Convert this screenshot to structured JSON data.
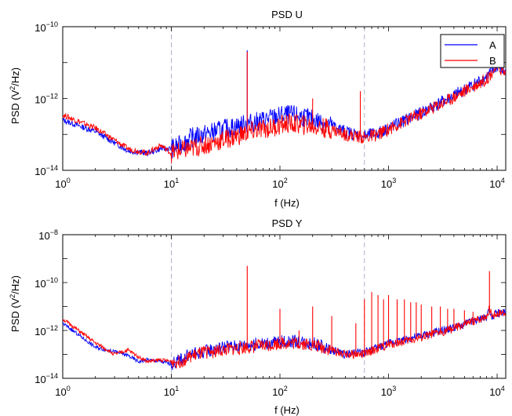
{
  "chart_data": [
    {
      "type": "line",
      "title": "PSD U",
      "xlabel": "f (Hz)",
      "ylabel_parts": {
        "pre": "PSD (V",
        "sup": "2",
        "post": "/Hz)"
      },
      "xscale": "log",
      "yscale": "log",
      "xlim": [
        1,
        12000
      ],
      "ylim": [
        1e-14,
        1e-10
      ],
      "x_ticks": [
        {
          "base": "10",
          "exp": "0",
          "value": 1
        },
        {
          "base": "10",
          "exp": "1",
          "value": 10
        },
        {
          "base": "10",
          "exp": "2",
          "value": 100
        },
        {
          "base": "10",
          "exp": "3",
          "value": 1000
        },
        {
          "base": "10",
          "exp": "4",
          "value": 10000
        }
      ],
      "y_ticks": [
        {
          "base": "10",
          "exp": "−14",
          "value": 1e-14
        },
        {
          "base": "10",
          "exp": "−12",
          "value": 1e-12
        },
        {
          "base": "10",
          "exp": "−10",
          "value": 1e-10
        }
      ],
      "vlines": [
        10,
        600
      ],
      "legend": {
        "placement": "top-right",
        "entries": [
          "A",
          "B"
        ]
      },
      "series": [
        {
          "name": "A",
          "color": "#0000ff",
          "x": [
            1,
            2,
            4,
            6,
            8,
            10,
            12,
            15,
            20,
            30,
            40,
            50,
            60,
            80,
            100,
            120,
            150,
            200,
            300,
            400,
            500,
            600,
            800,
            1000,
            2000,
            4000,
            8000,
            10000,
            12000
          ],
          "y": [
            2.5e-13,
            1.2e-13,
            3.5e-14,
            3e-14,
            4e-14,
            4e-14,
            5e-14,
            8e-14,
            1e-13,
            1.4e-13,
            1.7e-13,
            2e-13,
            2.2e-13,
            2.8e-13,
            3.3e-13,
            3.5e-13,
            3.3e-13,
            2.6e-13,
            1.8e-13,
            1.2e-13,
            1e-13,
            9e-14,
            1.1e-13,
            1.5e-13,
            4e-13,
            1.2e-12,
            4e-12,
            8e-12,
            5e-12
          ]
        },
        {
          "name": "B",
          "color": "#ff0000",
          "x": [
            1,
            2,
            4,
            6,
            8,
            10,
            12,
            15,
            20,
            30,
            40,
            50,
            60,
            80,
            100,
            120,
            150,
            200,
            300,
            400,
            500,
            600,
            800,
            1000,
            2000,
            4000,
            8000,
            10000,
            12000
          ],
          "y": [
            3.5e-13,
            1.5e-13,
            4e-14,
            3e-14,
            5e-14,
            3e-14,
            3.5e-14,
            4e-14,
            5e-14,
            7e-14,
            9e-14,
            1.1e-13,
            1.3e-13,
            1.5e-13,
            1.8e-13,
            2e-13,
            1.9e-13,
            1.7e-13,
            1.4e-13,
            1e-13,
            9e-14,
            8e-14,
            1e-13,
            1.4e-13,
            3.8e-13,
            1.1e-12,
            3.5e-12,
            8e-12,
            5e-12
          ]
        }
      ],
      "spikes": [
        {
          "series": "A",
          "x": 50,
          "y": 2.2e-11
        },
        {
          "series": "B",
          "x": 50,
          "y": 2e-11
        },
        {
          "series": "B",
          "x": 200,
          "y": 1e-12
        },
        {
          "series": "B",
          "x": 550,
          "y": 1.6e-12
        }
      ]
    },
    {
      "type": "line",
      "title": "PSD Y",
      "xlabel": "f (Hz)",
      "ylabel_parts": {
        "pre": "PSD (V",
        "sup": "2",
        "post": "/Hz)"
      },
      "xscale": "log",
      "yscale": "log",
      "xlim": [
        1,
        12000
      ],
      "ylim": [
        1e-14,
        1e-08
      ],
      "x_ticks": [
        {
          "base": "10",
          "exp": "0",
          "value": 1
        },
        {
          "base": "10",
          "exp": "1",
          "value": 10
        },
        {
          "base": "10",
          "exp": "2",
          "value": 100
        },
        {
          "base": "10",
          "exp": "3",
          "value": 1000
        },
        {
          "base": "10",
          "exp": "4",
          "value": 10000
        }
      ],
      "y_ticks": [
        {
          "base": "10",
          "exp": "−14",
          "value": 1e-14
        },
        {
          "base": "10",
          "exp": "−12",
          "value": 1e-12
        },
        {
          "base": "10",
          "exp": "−10",
          "value": 1e-10
        },
        {
          "base": "10",
          "exp": "−8",
          "value": 1e-08
        }
      ],
      "vlines": [
        10,
        600
      ],
      "series": [
        {
          "name": "A",
          "color": "#0000ff",
          "x": [
            1,
            2,
            3,
            4,
            5,
            6,
            8,
            10,
            12,
            15,
            20,
            30,
            50,
            80,
            100,
            150,
            200,
            300,
            400,
            600,
            800,
            1000,
            2000,
            4000,
            7000,
            8000,
            8500,
            9000,
            10000,
            12000
          ],
          "y": [
            2e-12,
            2e-13,
            1.3e-13,
            9e-14,
            5e-14,
            6e-14,
            5e-14,
            4e-14,
            6e-14,
            1e-13,
            1.3e-13,
            2e-13,
            2.5e-13,
            3e-13,
            3.5e-13,
            3.5e-13,
            3e-13,
            1.5e-13,
            1e-13,
            1.2e-13,
            2e-13,
            3e-13,
            6e-13,
            1.3e-12,
            3e-12,
            4e-12,
            8e-12,
            4e-12,
            5e-12,
            6e-12
          ]
        },
        {
          "name": "B",
          "color": "#ff0000",
          "x": [
            1,
            2,
            3,
            4,
            5,
            6,
            8,
            10,
            12,
            15,
            20,
            30,
            50,
            80,
            100,
            150,
            200,
            300,
            400,
            600,
            800,
            1000,
            2000,
            4000,
            7000,
            8000,
            8500,
            9000,
            10000,
            12000
          ],
          "y": [
            3e-12,
            3e-13,
            1e-13,
            1.5e-13,
            8e-14,
            5e-14,
            6e-14,
            5e-14,
            5e-14,
            8e-14,
            1.2e-13,
            1.5e-13,
            2e-13,
            2.5e-13,
            3e-13,
            3e-13,
            2.5e-13,
            1.5e-13,
            1e-13,
            1e-13,
            1.8e-13,
            2.5e-13,
            5e-13,
            1.2e-12,
            3e-12,
            4e-12,
            8e-12,
            4e-12,
            5e-12,
            6e-12
          ]
        }
      ],
      "spikes": [
        {
          "series": "B",
          "x": 50,
          "y": 5e-10
        },
        {
          "series": "B",
          "x": 100,
          "y": 8e-12
        },
        {
          "series": "B",
          "x": 150,
          "y": 1e-12
        },
        {
          "series": "B",
          "x": 200,
          "y": 1e-11
        },
        {
          "series": "B",
          "x": 300,
          "y": 4e-12
        },
        {
          "series": "B",
          "x": 500,
          "y": 2e-12
        },
        {
          "series": "B",
          "x": 600,
          "y": 2e-11
        },
        {
          "series": "B",
          "x": 700,
          "y": 4e-11
        },
        {
          "series": "B",
          "x": 800,
          "y": 3e-11
        },
        {
          "series": "B",
          "x": 900,
          "y": 2e-11
        },
        {
          "series": "B",
          "x": 1000,
          "y": 3e-11
        },
        {
          "series": "B",
          "x": 1200,
          "y": 2e-11
        },
        {
          "series": "B",
          "x": 1400,
          "y": 2e-11
        },
        {
          "series": "B",
          "x": 1600,
          "y": 1.5e-11
        },
        {
          "series": "B",
          "x": 1800,
          "y": 1.5e-11
        },
        {
          "series": "B",
          "x": 2000,
          "y": 1.2e-11
        },
        {
          "series": "B",
          "x": 2500,
          "y": 1e-11
        },
        {
          "series": "B",
          "x": 3000,
          "y": 1e-11
        },
        {
          "series": "B",
          "x": 3500,
          "y": 8e-12
        },
        {
          "series": "B",
          "x": 4000,
          "y": 8e-12
        },
        {
          "series": "B",
          "x": 5000,
          "y": 7e-12
        },
        {
          "series": "B",
          "x": 6000,
          "y": 6e-12
        },
        {
          "series": "B",
          "x": 8500,
          "y": 3e-10
        }
      ]
    }
  ]
}
